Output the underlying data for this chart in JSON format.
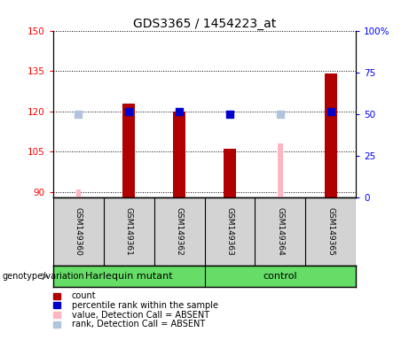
{
  "title": "GDS3365 / 1454223_at",
  "samples": [
    "GSM149360",
    "GSM149361",
    "GSM149362",
    "GSM149363",
    "GSM149364",
    "GSM149365"
  ],
  "group_labels": [
    "Harlequin mutant",
    "control"
  ],
  "group_split": 3,
  "ylim_left": [
    88,
    150
  ],
  "yticks_left": [
    90,
    105,
    120,
    135,
    150
  ],
  "ylim_right": [
    0,
    100
  ],
  "yticks_right": [
    0,
    25,
    50,
    75,
    100
  ],
  "count_values": [
    null,
    123,
    120,
    106,
    null,
    134
  ],
  "count_color": "#B00000",
  "rank_values": [
    null,
    120,
    120,
    119,
    null,
    120
  ],
  "rank_color": "#0000CD",
  "absent_value_values": [
    91,
    null,
    null,
    null,
    108,
    null
  ],
  "absent_value_color": "#FFB6C1",
  "absent_rank_values": [
    119,
    null,
    null,
    null,
    119,
    null
  ],
  "absent_rank_color": "#B0C4DE",
  "legend_items": [
    {
      "label": "count",
      "color": "#B00000"
    },
    {
      "label": "percentile rank within the sample",
      "color": "#0000CD"
    },
    {
      "label": "value, Detection Call = ABSENT",
      "color": "#FFB6C1"
    },
    {
      "label": "rank, Detection Call = ABSENT",
      "color": "#B0C4DE"
    }
  ],
  "genotype_label": "genotype/variation",
  "bar_width": 0.25,
  "dot_size": 30,
  "absent_bar_width": 0.1,
  "green_color": "#66DD66"
}
